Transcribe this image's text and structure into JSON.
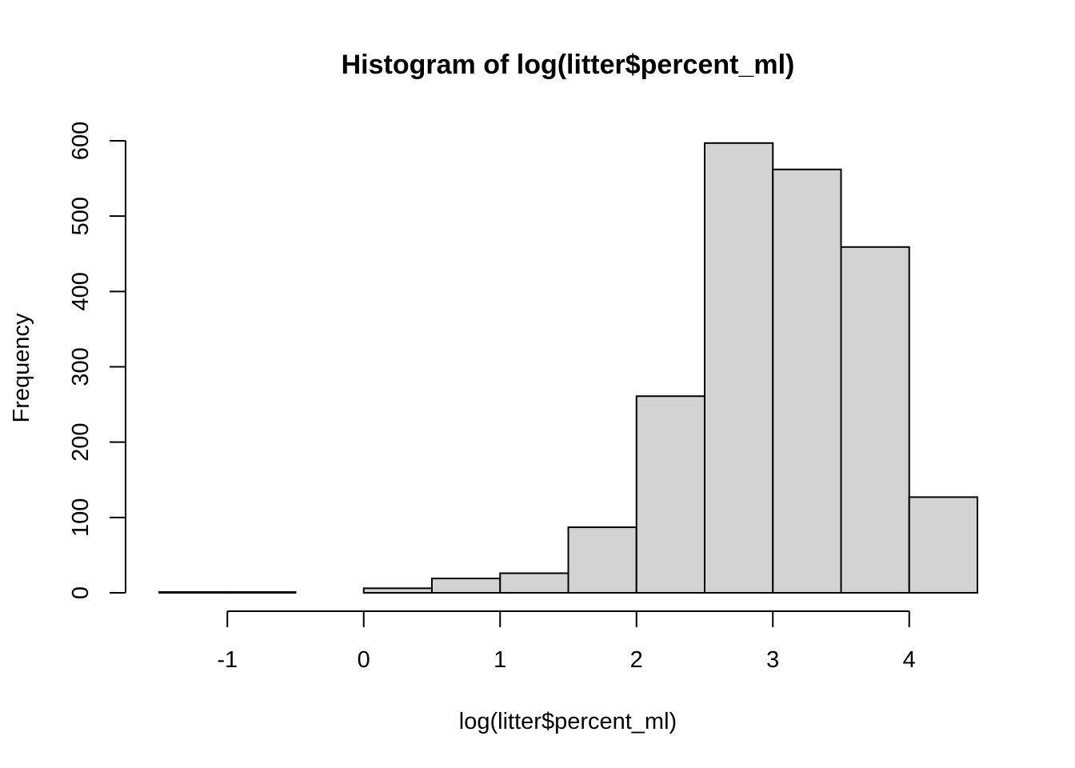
{
  "chart_data": {
    "type": "bar",
    "title": "Histogram of log(litter$percent_ml)",
    "xlabel": "log(litter$percent_ml)",
    "ylabel": "Frequency",
    "bins": [
      {
        "x0": -1.5,
        "x1": -1.0,
        "count": 1
      },
      {
        "x0": -1.0,
        "x1": -0.5,
        "count": 1
      },
      {
        "x0": -0.5,
        "x1": 0.0,
        "count": 0
      },
      {
        "x0": 0.0,
        "x1": 0.5,
        "count": 6
      },
      {
        "x0": 0.5,
        "x1": 1.0,
        "count": 19
      },
      {
        "x0": 1.0,
        "x1": 1.5,
        "count": 26
      },
      {
        "x0": 1.5,
        "x1": 2.0,
        "count": 87
      },
      {
        "x0": 2.0,
        "x1": 2.5,
        "count": 261
      },
      {
        "x0": 2.5,
        "x1": 3.0,
        "count": 597
      },
      {
        "x0": 3.0,
        "x1": 3.5,
        "count": 562
      },
      {
        "x0": 3.5,
        "x1": 4.0,
        "count": 459
      },
      {
        "x0": 4.0,
        "x1": 4.5,
        "count": 127
      }
    ],
    "xlim": [
      -1.5,
      4.5
    ],
    "ylim": [
      0,
      600
    ],
    "x_ticks": [
      -1,
      0,
      1,
      2,
      3,
      4
    ],
    "x_tick_labels": [
      "-1",
      "0",
      "1",
      "2",
      "3",
      "4"
    ],
    "y_ticks": [
      0,
      100,
      200,
      300,
      400,
      500,
      600
    ],
    "y_tick_labels": [
      "0",
      "100",
      "200",
      "300",
      "400",
      "500",
      "600"
    ],
    "bar_fill": "#d3d3d3",
    "bar_stroke": "#000000",
    "grid": false,
    "legend": "none"
  }
}
